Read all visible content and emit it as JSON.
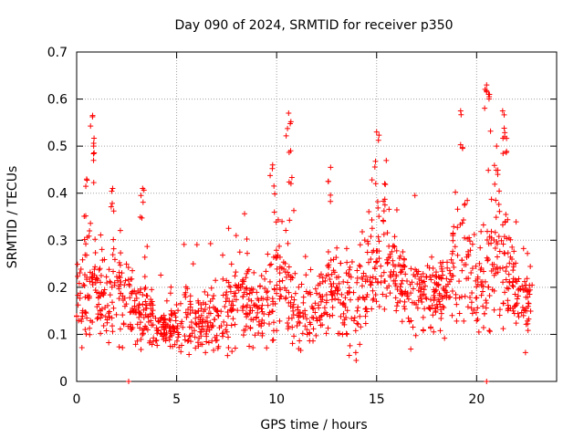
{
  "chart_data": {
    "type": "scatter",
    "title": "Day 090 of 2024, SRMTID for receiver p350",
    "xlabel": "GPS time / hours",
    "ylabel": "SRMTID / TECUs",
    "xlim": [
      0,
      24
    ],
    "ylim": [
      0,
      0.7
    ],
    "x_ticks": [
      0,
      5,
      10,
      15,
      20
    ],
    "x_tick_labels": [
      "0",
      "5",
      "10",
      "15",
      "20"
    ],
    "y_ticks": [
      0,
      0.1,
      0.2,
      0.3,
      0.4,
      0.5,
      0.6,
      0.7
    ],
    "y_tick_labels": [
      "0",
      "0.1",
      "0.2",
      "0.3",
      "0.4",
      "0.5",
      "0.6",
      "0.7"
    ],
    "grid": true,
    "marker": "plus",
    "series": [
      {
        "name": "SRMTID",
        "color": "#ff0000",
        "profile": [
          [
            0.0,
            0.17,
            0.06
          ],
          [
            0.5,
            0.21,
            0.08
          ],
          [
            1.0,
            0.19,
            0.07
          ],
          [
            1.5,
            0.16,
            0.06
          ],
          [
            2.0,
            0.2,
            0.07
          ],
          [
            2.5,
            0.17,
            0.06
          ],
          [
            3.0,
            0.14,
            0.05
          ],
          [
            3.5,
            0.15,
            0.05
          ],
          [
            4.0,
            0.12,
            0.035
          ],
          [
            4.5,
            0.11,
            0.03
          ],
          [
            5.0,
            0.12,
            0.035
          ],
          [
            5.5,
            0.13,
            0.04
          ],
          [
            6.0,
            0.12,
            0.04
          ],
          [
            6.5,
            0.13,
            0.04
          ],
          [
            7.0,
            0.14,
            0.045
          ],
          [
            7.5,
            0.15,
            0.05
          ],
          [
            8.0,
            0.16,
            0.05
          ],
          [
            8.5,
            0.19,
            0.06
          ],
          [
            9.0,
            0.15,
            0.05
          ],
          [
            9.5,
            0.17,
            0.06
          ],
          [
            10.0,
            0.24,
            0.07
          ],
          [
            10.5,
            0.22,
            0.08
          ],
          [
            11.0,
            0.15,
            0.05
          ],
          [
            11.5,
            0.14,
            0.05
          ],
          [
            12.0,
            0.16,
            0.05
          ],
          [
            12.5,
            0.18,
            0.06
          ],
          [
            13.0,
            0.19,
            0.06
          ],
          [
            13.5,
            0.18,
            0.06
          ],
          [
            14.0,
            0.17,
            0.06
          ],
          [
            14.5,
            0.21,
            0.06
          ],
          [
            15.0,
            0.25,
            0.07
          ],
          [
            15.5,
            0.28,
            0.07
          ],
          [
            16.0,
            0.24,
            0.06
          ],
          [
            16.5,
            0.2,
            0.06
          ],
          [
            17.0,
            0.18,
            0.05
          ],
          [
            17.5,
            0.19,
            0.05
          ],
          [
            18.0,
            0.18,
            0.05
          ],
          [
            18.5,
            0.2,
            0.06
          ],
          [
            19.0,
            0.25,
            0.08
          ],
          [
            19.5,
            0.26,
            0.08
          ],
          [
            20.0,
            0.21,
            0.07
          ],
          [
            20.5,
            0.22,
            0.08
          ],
          [
            21.0,
            0.29,
            0.09
          ],
          [
            21.5,
            0.24,
            0.08
          ],
          [
            22.0,
            0.17,
            0.05
          ],
          [
            22.5,
            0.15,
            0.05
          ],
          [
            22.8,
            0.16,
            0.05
          ]
        ],
        "peaks": [
          [
            0.8,
            0.565
          ],
          [
            0.85,
            0.5
          ],
          [
            0.5,
            0.43
          ],
          [
            1.8,
            0.41
          ],
          [
            3.3,
            0.41
          ],
          [
            9.8,
            0.46
          ],
          [
            10.6,
            0.57
          ],
          [
            10.7,
            0.49
          ],
          [
            12.7,
            0.455
          ],
          [
            15.0,
            0.53
          ],
          [
            15.4,
            0.42
          ],
          [
            19.2,
            0.575
          ],
          [
            20.5,
            0.63
          ],
          [
            20.6,
            0.61
          ],
          [
            21.0,
            0.5
          ],
          [
            21.3,
            0.575
          ],
          [
            21.4,
            0.52
          ],
          [
            2.6,
            0.0
          ],
          [
            20.5,
            0.0
          ]
        ]
      }
    ]
  }
}
